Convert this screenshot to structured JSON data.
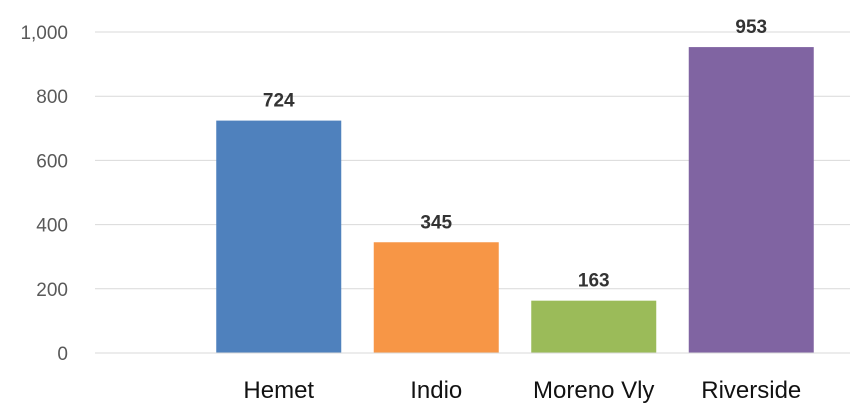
{
  "chart_data": {
    "type": "bar",
    "categories": [
      "Hemet",
      "Indio",
      "Moreno Vly",
      "Riverside"
    ],
    "values": [
      724,
      345,
      163,
      953
    ],
    "data_labels": [
      "724",
      "345",
      "163",
      "953"
    ],
    "colors": [
      "#4f81bd",
      "#f79646",
      "#9bbb59",
      "#8064a2"
    ],
    "ylim": [
      0,
      1000
    ],
    "yticks": [
      0,
      200,
      400,
      600,
      800,
      1000
    ],
    "ytick_labels": [
      "0",
      "200",
      "400",
      "600",
      "800",
      "1,000"
    ],
    "grid": true,
    "legend": "none"
  }
}
